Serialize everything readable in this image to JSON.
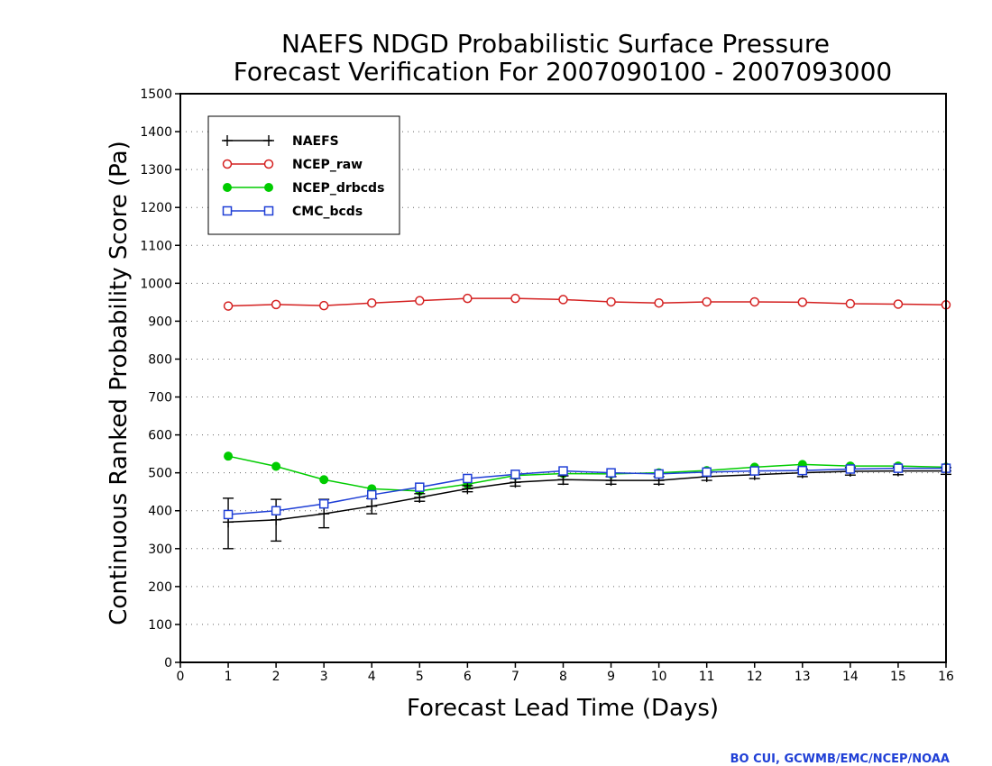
{
  "chart_data": {
    "type": "line",
    "title": [
      "NAEFS NDGD Probabilistic Surface Pressure",
      "Forecast Verification For 2007090100 - 2007093000"
    ],
    "xlabel": "Forecast Lead Time (Days)",
    "ylabel": "Continuous Ranked Probability Score (Pa)",
    "xlim": [
      0,
      16
    ],
    "ylim": [
      0,
      1500
    ],
    "xticks": [
      0,
      1,
      2,
      3,
      4,
      5,
      6,
      7,
      8,
      9,
      10,
      11,
      12,
      13,
      14,
      15,
      16
    ],
    "yticks": [
      0,
      100,
      200,
      300,
      400,
      500,
      600,
      700,
      800,
      900,
      1000,
      1100,
      1200,
      1300,
      1400,
      1500
    ],
    "grid": "horizontal dotted",
    "legend_position": "top-left",
    "x": [
      1,
      2,
      3,
      4,
      5,
      6,
      7,
      8,
      9,
      10,
      11,
      12,
      13,
      14,
      15,
      16
    ],
    "series": [
      {
        "name": "NAEFS",
        "color": "#000000",
        "marker": "plus",
        "values": [
          370,
          376,
          392,
          412,
          435,
          458,
          475,
          482,
          480,
          480,
          490,
          495,
          500,
          504,
          505,
          505
        ],
        "error_low": [
          300,
          320,
          355,
          392,
          425,
          450,
          465,
          470,
          470,
          470,
          480,
          485,
          490,
          494,
          495,
          496
        ],
        "error_high": [
          433,
          430,
          430,
          432,
          445,
          466,
          485,
          492,
          490,
          490,
          500,
          505,
          510,
          514,
          515,
          514
        ]
      },
      {
        "name": "NCEP_raw",
        "color": "#d42020",
        "marker": "open-circle",
        "values": [
          940,
          944,
          941,
          948,
          954,
          960,
          960,
          957,
          951,
          948,
          951,
          951,
          950,
          946,
          945,
          943
        ]
      },
      {
        "name": "NCEP_drbcds",
        "color": "#00cc00",
        "marker": "filled-circle",
        "values": [
          544,
          517,
          482,
          458,
          452,
          470,
          493,
          498,
          497,
          500,
          506,
          515,
          522,
          518,
          518,
          515
        ]
      },
      {
        "name": "CMC_bcds",
        "color": "#1f3fd6",
        "marker": "open-square",
        "values": [
          390,
          400,
          418,
          442,
          462,
          485,
          496,
          505,
          500,
          497,
          502,
          505,
          506,
          510,
          512,
          512
        ]
      }
    ]
  },
  "credit": "BO CUI, GCWMB/EMC/NCEP/NOAA"
}
